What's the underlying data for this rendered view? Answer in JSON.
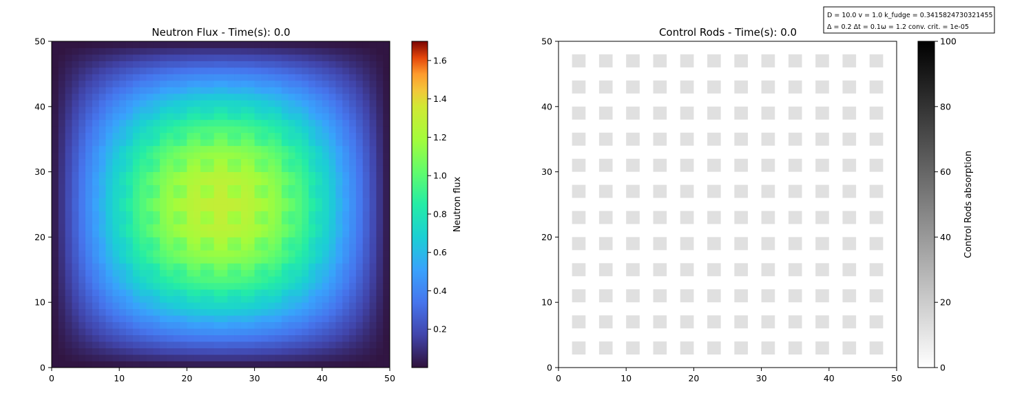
{
  "chart_data": [
    {
      "type": "heatmap",
      "title": "Neutron Flux - Time(s): 0.0",
      "xlim": [
        0,
        50
      ],
      "ylim": [
        0,
        50
      ],
      "xticks": [
        0,
        10,
        20,
        30,
        40,
        50
      ],
      "yticks": [
        0,
        10,
        20,
        30,
        40,
        50
      ],
      "grid": false,
      "colormap": "turbo",
      "colorbar": {
        "label": "Neutron flux",
        "range": [
          0.0,
          1.7
        ],
        "ticks": [
          0.2,
          0.4,
          0.6,
          0.8,
          1.0,
          1.2,
          1.4,
          1.6
        ],
        "tick_labels": [
          "0.2",
          "0.4",
          "0.6",
          "0.8",
          "1.0",
          "1.2",
          "1.4",
          "1.6"
        ]
      },
      "grid_size": 50,
      "field": {
        "profile": "sin(pi*x/50)*sin(pi*y/50)",
        "peak": 1.28,
        "rod_pattern_amplitude": 0.08,
        "min": 0.01
      }
    },
    {
      "type": "heatmap",
      "title": "Control Rods - Time(s): 0.0",
      "xlim": [
        0,
        50
      ],
      "ylim": [
        0,
        50
      ],
      "xticks": [
        0,
        10,
        20,
        30,
        40,
        50
      ],
      "yticks": [
        0,
        10,
        20,
        30,
        40,
        50
      ],
      "grid": false,
      "colormap": "gray_r",
      "colorbar": {
        "label": "Control Rods absorption",
        "range": [
          0,
          100
        ],
        "ticks": [
          0,
          20,
          40,
          60,
          80,
          100
        ],
        "tick_labels": [
          "0",
          "20",
          "40",
          "60",
          "80",
          "100"
        ]
      },
      "rods": {
        "columns_x": [
          2,
          6,
          10,
          14,
          18,
          22,
          26,
          30,
          34,
          38,
          42,
          46
        ],
        "rows_y": [
          2,
          6,
          10,
          14,
          18,
          22,
          26,
          30,
          34,
          38,
          42,
          46
        ],
        "size": 2,
        "absorption": 12
      }
    }
  ],
  "params": {
    "line1": "D = 10.0    v = 1.0    k_fudge = 0.3415824730321455",
    "line2": "Δ = 0.2       Δt = 0.1ω = 1.2      conv. crit. = 1e-05"
  }
}
